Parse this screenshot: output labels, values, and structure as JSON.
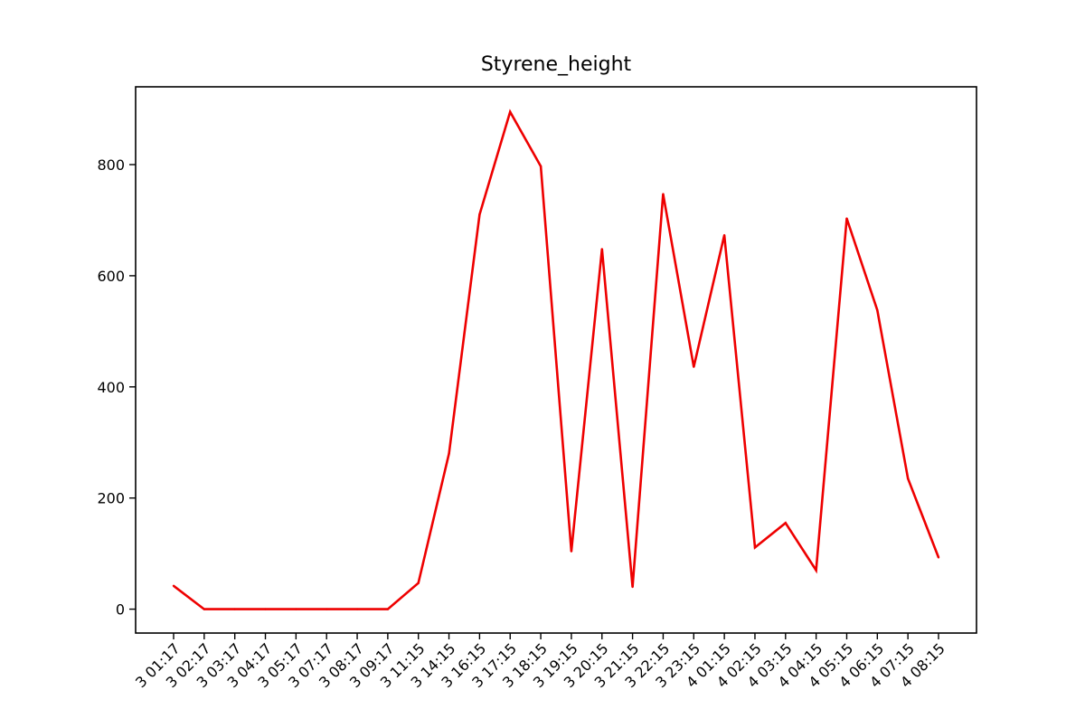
{
  "chart_data": {
    "type": "line",
    "title": "Styrene_height",
    "xlabel": "",
    "ylabel": "",
    "grid": false,
    "line_color": "#ee0000",
    "categories": [
      "3 01:17",
      "3 02:17",
      "3 03:17",
      "3 04:17",
      "3 05:17",
      "3 07:17",
      "3 08:17",
      "3 09:17",
      "3 11:15",
      "3 14:15",
      "3 16:15",
      "3 17:15",
      "3 18:15",
      "3 19:15",
      "3 20:15",
      "3 21:15",
      "3 22:15",
      "3 23:15",
      "4 01:15",
      "4 02:15",
      "4 03:15",
      "4 04:15",
      "4 05:15",
      "4 06:15",
      "4 07:15",
      "4 08:15"
    ],
    "values": [
      42,
      0,
      0,
      0,
      0,
      0,
      0,
      0,
      47,
      280,
      710,
      895,
      797,
      104,
      648,
      40,
      747,
      436,
      673,
      111,
      155,
      70,
      703,
      538,
      235,
      93
    ],
    "ylim": [
      -43,
      940
    ],
    "yticks": [
      0,
      200,
      400,
      600,
      800
    ]
  }
}
